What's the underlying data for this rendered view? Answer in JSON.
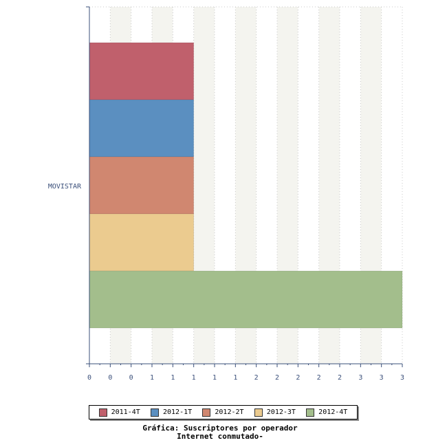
{
  "chart_data": {
    "type": "bar",
    "orientation": "horizontal",
    "categories": [
      "MOVISTAR"
    ],
    "series": [
      {
        "name": "2011-4T",
        "color": "#c0606c",
        "values": [
          1
        ]
      },
      {
        "name": "2012-1T",
        "color": "#5b8fc0",
        "values": [
          1
        ]
      },
      {
        "name": "2012-2T",
        "color": "#d08770",
        "values": [
          1
        ]
      },
      {
        "name": "2012-3T",
        "color": "#ebcb8f",
        "values": [
          1
        ]
      },
      {
        "name": "2012-4T",
        "color": "#a3be8c",
        "values": [
          3
        ]
      }
    ],
    "xlim": [
      0,
      3
    ],
    "x_tick_labels": [
      "0",
      "0",
      "0",
      "1",
      "1",
      "1",
      "1",
      "1",
      "2",
      "2",
      "2",
      "2",
      "2",
      "3",
      "3",
      "3"
    ],
    "grid": "vertical dotted lines with alternating shaded bands",
    "legend_position": "bottom",
    "title": "Gráfica: Suscriptores por operador",
    "subtitle": "Internet conmutado-"
  }
}
